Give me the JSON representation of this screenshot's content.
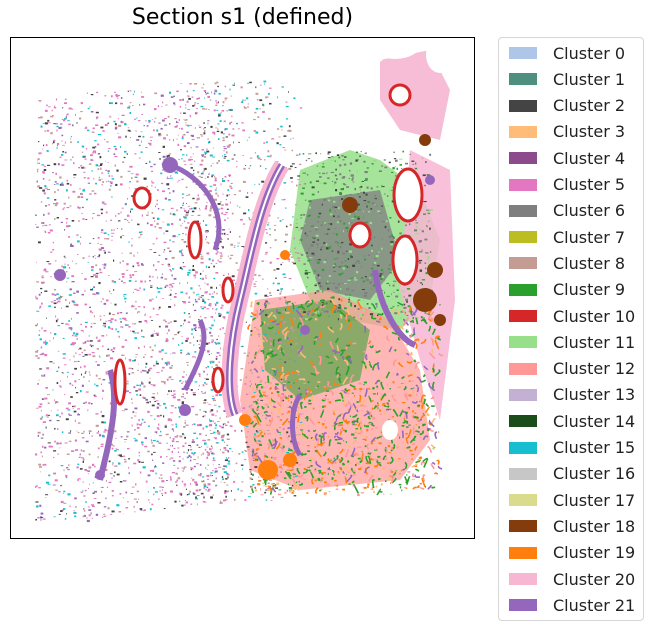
{
  "chart_data": {
    "type": "scatter",
    "title": "Section s1 (defined)",
    "xlabel": "",
    "ylabel": "",
    "x_ticks": "none",
    "y_ticks": "none",
    "legend_position": "outside-right",
    "grid": false,
    "series": [
      {
        "name": "Cluster 0",
        "color": "#aec7e8"
      },
      {
        "name": "Cluster 1",
        "color": "#4f8f80"
      },
      {
        "name": "Cluster 2",
        "color": "#444444"
      },
      {
        "name": "Cluster 3",
        "color": "#ffbb78"
      },
      {
        "name": "Cluster 4",
        "color": "#8c4a8c"
      },
      {
        "name": "Cluster 5",
        "color": "#e377c2"
      },
      {
        "name": "Cluster 6",
        "color": "#7f7f7f"
      },
      {
        "name": "Cluster 7",
        "color": "#bcbd22"
      },
      {
        "name": "Cluster 8",
        "color": "#c49c94"
      },
      {
        "name": "Cluster 9",
        "color": "#2ca02c"
      },
      {
        "name": "Cluster 10",
        "color": "#d62728"
      },
      {
        "name": "Cluster 11",
        "color": "#98df8a"
      },
      {
        "name": "Cluster 12",
        "color": "#ff9896"
      },
      {
        "name": "Cluster 13",
        "color": "#c5b0d5"
      },
      {
        "name": "Cluster 14",
        "color": "#1a4d1a"
      },
      {
        "name": "Cluster 15",
        "color": "#17becf"
      },
      {
        "name": "Cluster 16",
        "color": "#c7c7c7"
      },
      {
        "name": "Cluster 17",
        "color": "#dbdb8d"
      },
      {
        "name": "Cluster 18",
        "color": "#843c0c"
      },
      {
        "name": "Cluster 19",
        "color": "#ff7f0e"
      },
      {
        "name": "Cluster 20",
        "color": "#f7b6d2"
      },
      {
        "name": "Cluster 21",
        "color": "#9467bd"
      }
    ]
  }
}
